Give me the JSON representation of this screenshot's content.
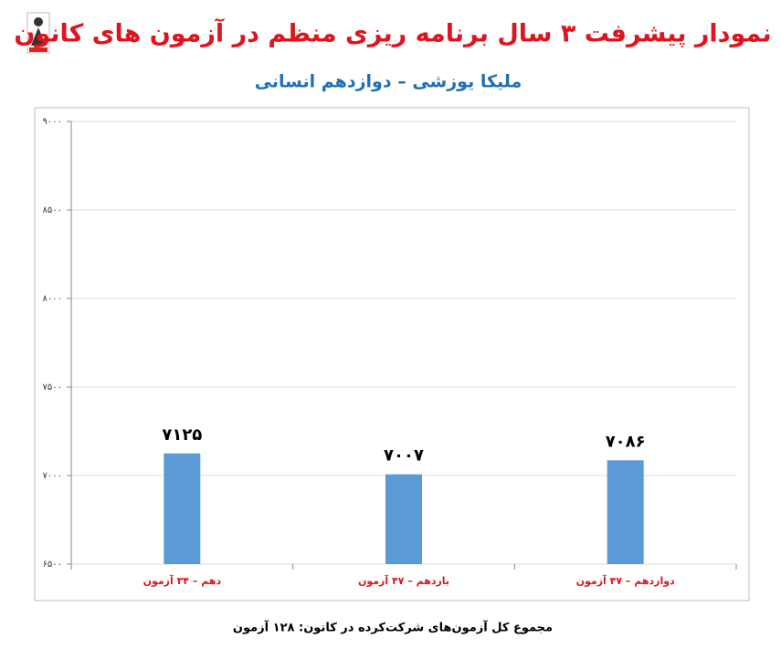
{
  "chart_data": {
    "type": "bar",
    "title": "نمودار پیشرفت ۳ سال برنامه ریزی منظم در آزمون های کانون",
    "subtitle": "ملیکا یوزشی – دوازدهم انسانی",
    "categories": [
      "دهم – ۳۴ آزمون",
      "یازدهم – ۴۷ آزمون",
      "دوازدهم – ۴۷ آزمون"
    ],
    "values": [
      7125,
      7007,
      7086
    ],
    "value_labels": [
      "۷۱۲۵",
      "۷۰۰۷",
      "۷۰۸۶"
    ],
    "color": "#5b9bd5",
    "ylim": [
      6500,
      9000
    ],
    "yticks": [
      {
        "value": 6500,
        "label": "۶۵۰۰"
      },
      {
        "value": 7000,
        "label": "۷۰۰۰"
      },
      {
        "value": 7500,
        "label": "۷۵۰۰"
      },
      {
        "value": 8000,
        "label": "۸۰۰۰"
      },
      {
        "value": 8500,
        "label": "۸۵۰۰"
      },
      {
        "value": 9000,
        "label": "۹۰۰۰"
      }
    ],
    "grid": true,
    "footnote": "مجموع کل آزمون‌های شرکت‌کرده در کانون: ۱۲۸ آزمون"
  }
}
